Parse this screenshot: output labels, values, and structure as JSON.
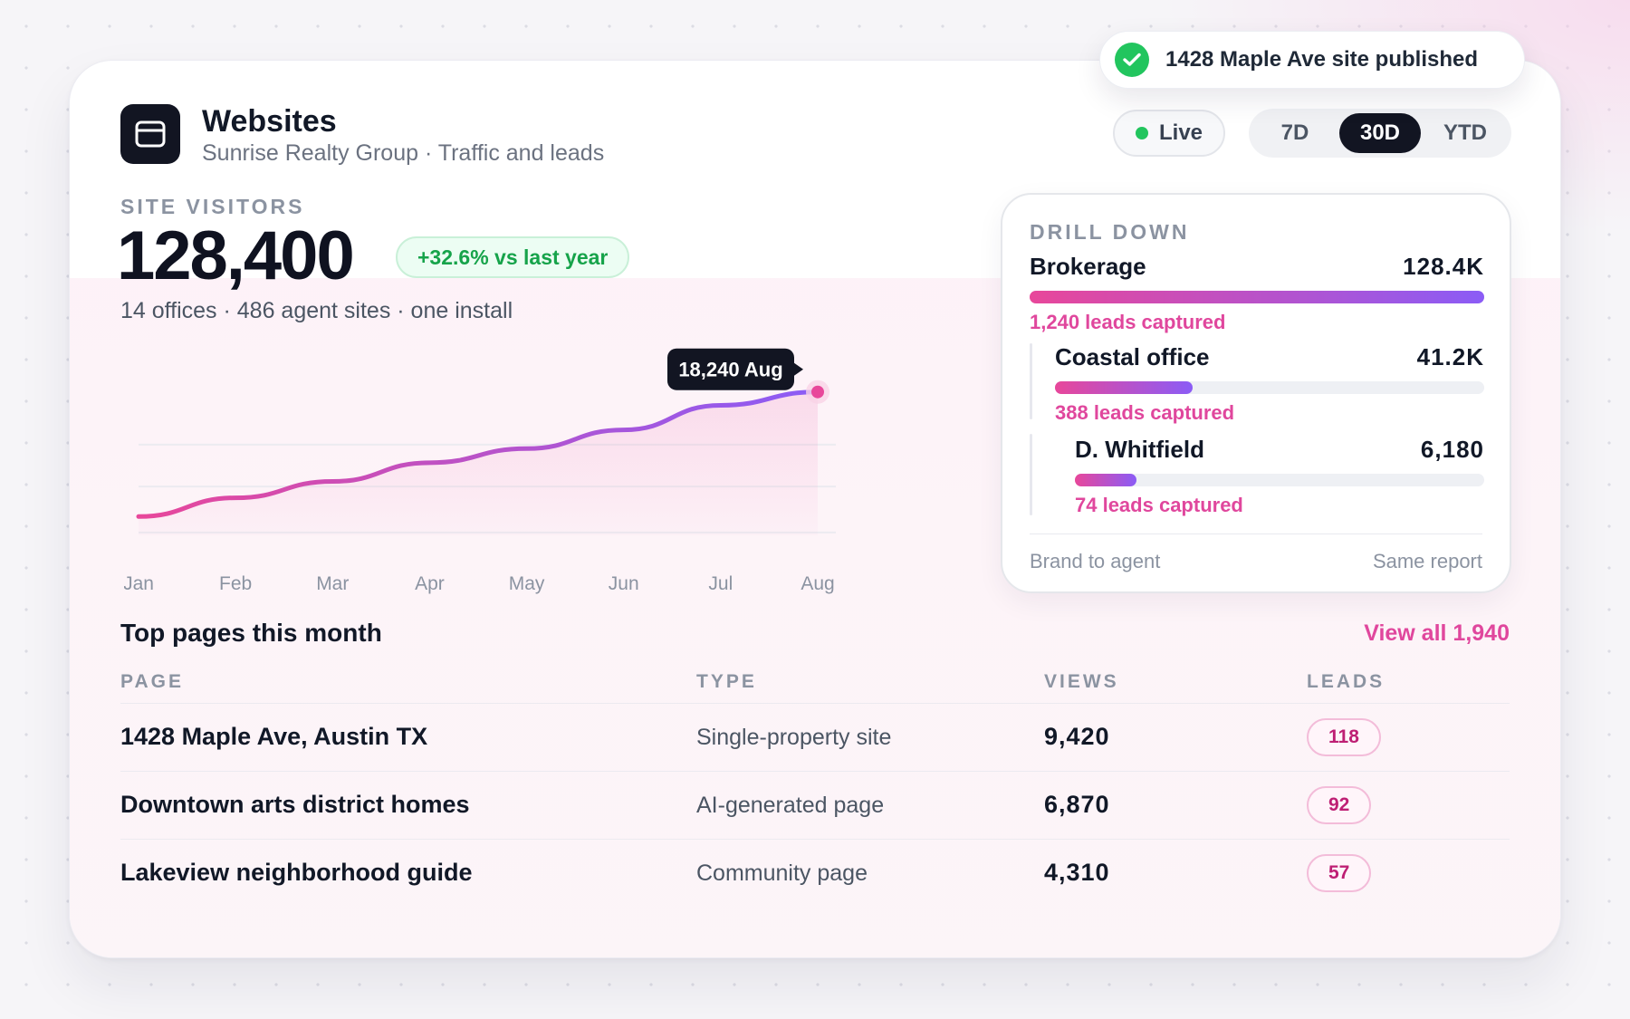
{
  "app": {
    "title": "Websites",
    "subtitle": "Sunrise Realty Group · Traffic and leads",
    "icon": "browser-window-icon"
  },
  "status": {
    "live_label": "Live",
    "live_color": "#22c55e"
  },
  "range": {
    "options": [
      "7D",
      "30D",
      "YTD"
    ],
    "selected": "30D"
  },
  "toast": {
    "text": "1428 Maple Ave site published",
    "icon": "check-circle-icon"
  },
  "kpi": {
    "label": "SITE VISITORS",
    "value": "128,400",
    "delta": "+32.6% vs last year",
    "meta": "14 offices · 486 agent sites · one install"
  },
  "chart_data": {
    "type": "area",
    "categories": [
      "Jan",
      "Feb",
      "Mar",
      "Apr",
      "May",
      "Jun",
      "Jul",
      "Aug"
    ],
    "values": [
      7600,
      9200,
      10600,
      12200,
      13400,
      15000,
      17100,
      18240
    ],
    "ylim": [
      6000,
      21000
    ],
    "grid": true,
    "callout": "18,240 Aug",
    "colors": {
      "start": "#e8479a",
      "end": "#8b5cf6"
    }
  },
  "drill": {
    "heading": "DRILL DOWN",
    "items": [
      {
        "name": "Brokerage",
        "value": "128.4K",
        "leads": "1,240 leads captured",
        "fill": 1.0
      },
      {
        "name": "Coastal office",
        "value": "41.2K",
        "leads": "388 leads captured",
        "fill": 0.32
      },
      {
        "name": "D. Whitfield",
        "value": "6,180",
        "leads": "74 leads captured",
        "fill": 0.15
      }
    ],
    "footer_left": "Brand to agent",
    "footer_right": "Same report"
  },
  "top_pages": {
    "title": "Top pages this month",
    "view_all": "View all 1,940",
    "columns": [
      "PAGE",
      "TYPE",
      "VIEWS",
      "LEADS"
    ],
    "rows": [
      {
        "page": "1428 Maple Ave, Austin TX",
        "type": "Single-property site",
        "views": "9,420",
        "leads": "118"
      },
      {
        "page": "Downtown arts district homes",
        "type": "AI-generated page",
        "views": "6,870",
        "leads": "92"
      },
      {
        "page": "Lakeview neighborhood guide",
        "type": "Community page",
        "views": "4,310",
        "leads": "57"
      }
    ]
  }
}
